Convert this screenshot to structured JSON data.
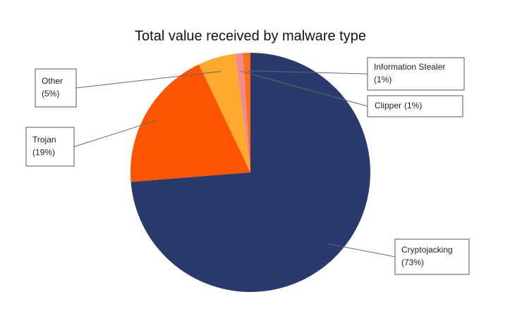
{
  "chart_data": {
    "type": "pie",
    "title": "Total value received by malware type",
    "categories": [
      "Cryptojacking",
      "Trojan",
      "Other",
      "Clipper",
      "Information Stealer"
    ],
    "values": [
      73,
      19,
      5,
      1,
      1
    ],
    "value_labels": [
      "(73%)",
      "(19%)",
      "(5%)",
      "(1%)",
      "(1%)"
    ],
    "colors": [
      "#2b3a6d",
      "#ff5500",
      "#ffa92e",
      "#ef8c8c",
      "#ff6d1f"
    ]
  }
}
